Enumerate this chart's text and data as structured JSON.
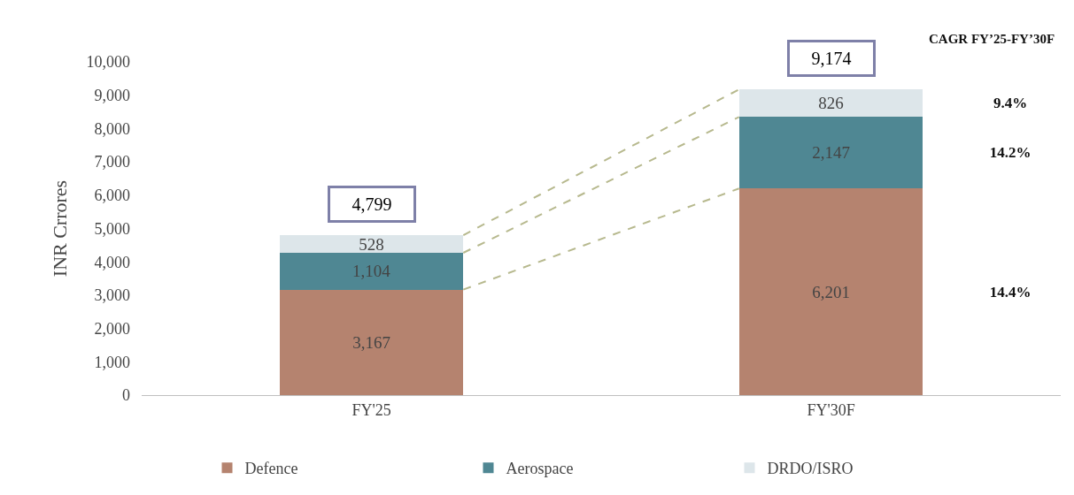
{
  "chart_data": {
    "type": "bar",
    "stacked": true,
    "ylabel": "INR Crrores",
    "categories": [
      "FY'25",
      "FY'30F"
    ],
    "series": [
      {
        "name": "Defence",
        "color": "#b5836f",
        "values": [
          3167,
          6201
        ],
        "value_labels": [
          "3,167",
          "6,201"
        ]
      },
      {
        "name": "Aerospace",
        "color": "#4f8793",
        "values": [
          1104,
          2147
        ],
        "value_labels": [
          "1,104",
          "2,147"
        ]
      },
      {
        "name": "DRDO/ISRO",
        "color": "#dde6ea",
        "values": [
          528,
          826
        ],
        "value_labels": [
          "528",
          "826"
        ]
      }
    ],
    "ylim": [
      0,
      10000
    ],
    "yticks": [
      0,
      {
        "value": 1000,
        "label": "1,000"
      },
      {
        "value": 2000,
        "label": "2,000"
      },
      {
        "value": 3000,
        "label": "3,000"
      },
      {
        "value": 4000,
        "label": "4,000"
      },
      {
        "value": 5000,
        "label": "5,000"
      },
      {
        "value": 6000,
        "label": "6,000"
      },
      {
        "value": 7000,
        "label": "7,000"
      },
      {
        "value": 8000,
        "label": "8,000"
      },
      {
        "value": 9000,
        "label": "9,000"
      },
      {
        "value": 10000,
        "label": "10,000"
      }
    ],
    "totals": [
      "4,799",
      "9,174"
    ],
    "annotations": [
      "CAGR FY’25-FY’30F",
      "14.4%",
      "14.2%",
      "9.4%"
    ],
    "grid": false,
    "legend": "bottom"
  }
}
